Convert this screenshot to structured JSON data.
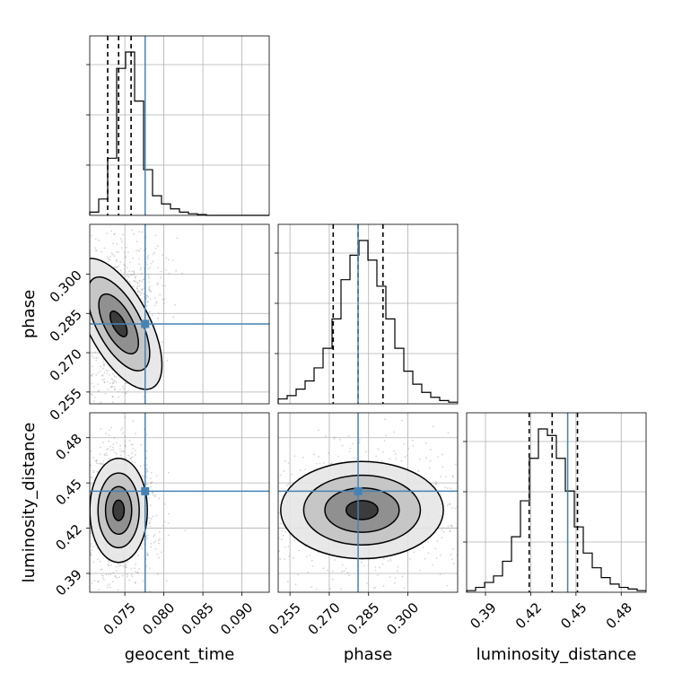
{
  "chart_data": {
    "type": "scatter",
    "subtype": "corner",
    "parameters": [
      "geocent_time",
      "phase",
      "luminosity_distance"
    ],
    "truths": {
      "geocent_time": 0.0776,
      "phase": 0.281,
      "luminosity_distance": 0.4445
    },
    "quantiles": {
      "geocent_time": [
        0.0728,
        0.0742,
        0.0758
      ],
      "phase": [
        0.2715,
        0.281,
        0.2905
      ],
      "luminosity_distance": [
        0.419,
        0.4342,
        0.451
      ]
    },
    "ranges": {
      "geocent_time": [
        0.0705,
        0.0935
      ],
      "phase": [
        0.2505,
        0.319
      ],
      "luminosity_distance": [
        0.3775,
        0.4965
      ]
    },
    "histograms": {
      "geocent_time": {
        "edges_start": 0.0705,
        "bin_width": 0.00115,
        "counts": [
          2,
          10,
          35,
          90,
          100,
          70,
          28,
          12,
          7,
          4,
          2,
          1,
          0.5,
          0,
          0,
          0,
          0,
          0,
          0,
          0
        ]
      },
      "phase": {
        "edges_start": 0.2505,
        "bin_width": 0.003425,
        "counts": [
          3,
          5,
          9,
          14,
          22,
          34,
          52,
          76,
          91,
          100,
          88,
          72,
          52,
          34,
          20,
          12,
          7,
          4,
          2,
          1
        ]
      },
      "luminosity_distance": {
        "edges_start": 0.3775,
        "bin_width": 0.00595,
        "counts": [
          1,
          3,
          6,
          10,
          19,
          34,
          56,
          82,
          100,
          96,
          82,
          62,
          40,
          24,
          15,
          9,
          5,
          3,
          2,
          1
        ]
      }
    },
    "contour_centers": {
      "phase_vs_geocent_time": {
        "x": 0.0742,
        "y": 0.281
      },
      "luminosity_distance_vs_geocent_time": {
        "x": 0.0742,
        "y": 0.4318
      },
      "luminosity_distance_vs_phase": {
        "x": 0.2825,
        "y": 0.432
      }
    },
    "x_ticks": {
      "geocent_time": [
        "0.075",
        "0.080",
        "0.085",
        "0.090"
      ],
      "phase": [
        "0.255",
        "0.270",
        "0.285",
        "0.300"
      ],
      "luminosity_distance": [
        "0.39",
        "0.42",
        "0.45",
        "0.48"
      ]
    },
    "y_ticks": {
      "phase": [
        "0.255",
        "0.270",
        "0.285",
        "0.300"
      ],
      "luminosity_distance": [
        "0.39",
        "0.42",
        "0.45",
        "0.48"
      ]
    },
    "colors": {
      "truth": "#4682b4",
      "hist": "#000000",
      "points": "#888888"
    },
    "grid": true
  }
}
